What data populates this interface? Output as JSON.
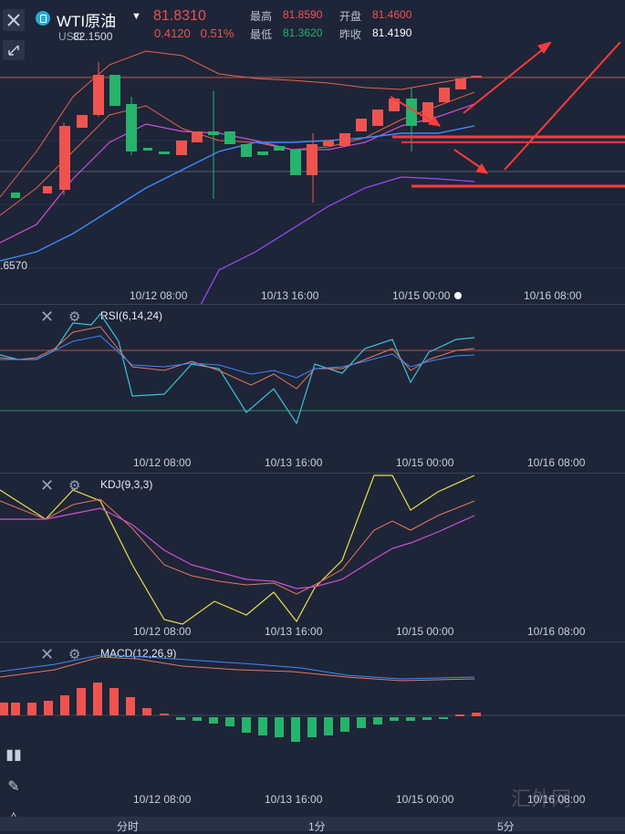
{
  "header": {
    "symbol": "WTI原油",
    "price": "81.8310",
    "change": "0.4120",
    "change_pct": "0.51%",
    "sub_left": "USO",
    "stats": {
      "high_label": "最高",
      "high": "81.8590",
      "open_label": "开盘",
      "open": "81.4600",
      "low_label": "最低",
      "low": "81.3620",
      "prev_close_label": "昨收",
      "prev_close": "81.4190"
    }
  },
  "main_chart": {
    "top_left_price": "82.1500",
    "bottom_left_price": ".6570",
    "dates": [
      "10/12 08:00",
      "10/13 16:00",
      "10/15 00:00",
      "10/16 08:00"
    ]
  },
  "rsi_panel": {
    "label": "RSI(6,14,24)",
    "dates": [
      "10/12 08:00",
      "10/13 16:00",
      "10/15 00:00",
      "10/16 08:00"
    ]
  },
  "kdj_panel": {
    "label": "KDJ(9,3,3)",
    "dates": [
      "10/12 08:00",
      "10/13 16:00",
      "10/15 00:00",
      "10/16 08:00"
    ]
  },
  "macd_panel": {
    "label": "MACD(12,26,9)",
    "dates": [
      "10/12 08:00",
      "10/13 16:00",
      "10/15 00:00",
      "10/16 08:00"
    ]
  },
  "timeframes": [
    "分时",
    "1分",
    "5分"
  ],
  "watermark": "汇外网",
  "icons": [
    "close-icon",
    "shrink-icon",
    "gear-icon",
    "candlestick-icon",
    "pencil-icon",
    "drawing-tool-icon"
  ],
  "colors": {
    "up": "#ef5350",
    "down": "#26b36b",
    "ma_blue": "#3d8bff",
    "ma_purple": "#9b4dff",
    "boll_orange": "#e5634a",
    "annotation": "#ff3b3b"
  }
}
